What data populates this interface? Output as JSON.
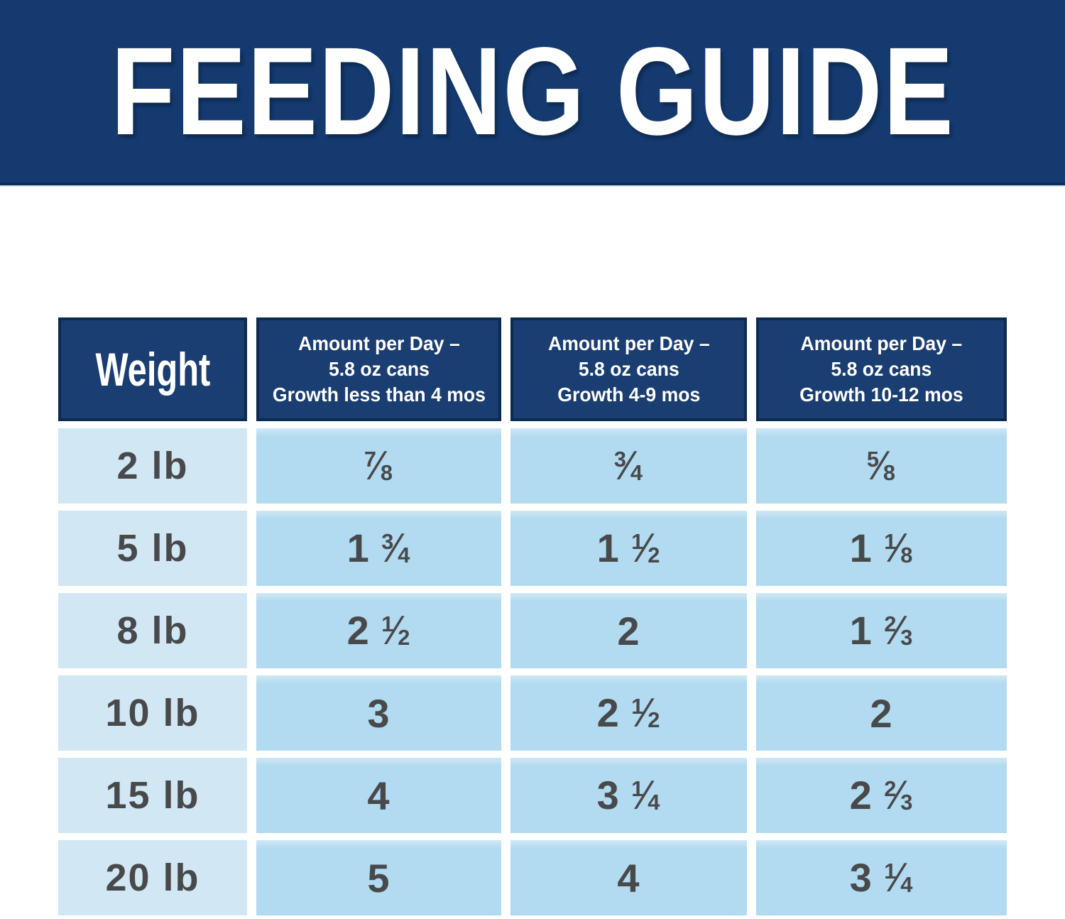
{
  "chart_data": {
    "type": "table",
    "title": "FEEDING GUIDE",
    "header_lines": [
      [
        "Weight"
      ],
      [
        "Amount per Day –",
        "5.8 oz cans",
        "Growth less than 4 mos"
      ],
      [
        "Amount per Day –",
        "5.8 oz cans",
        "Growth 4-9 mos"
      ],
      [
        "Amount per Day –",
        "5.8 oz cans",
        "Growth 10-12 mos"
      ]
    ],
    "rows": [
      [
        "2 lb",
        "7/8",
        "3/4",
        "5/8"
      ],
      [
        "5 lb",
        "1 3/4",
        "1 1/2",
        "1 1/8"
      ],
      [
        "8 lb",
        "2 1/2",
        "2",
        "1 2/3"
      ],
      [
        "10 lb",
        "3",
        "2 1/2",
        "2"
      ],
      [
        "15 lb",
        "4",
        "3 1/4",
        "2 2/3"
      ],
      [
        "20 lb",
        "5",
        "4",
        "3 1/4"
      ]
    ],
    "layout_hints": {
      "value_unit": "5.8 oz cans per day",
      "grid": "separated cells on white background"
    }
  },
  "colors": {
    "banner_navy": "#143a70",
    "header_cell_navy": "#1a3d72",
    "header_cell_border": "#0d2a52",
    "value_cell_blue": "#b2daf0",
    "weight_cell_blue": "#d2e7f4",
    "value_text_gray": "#48494b",
    "header_text": "#ffffff",
    "background": "#ffffff"
  }
}
